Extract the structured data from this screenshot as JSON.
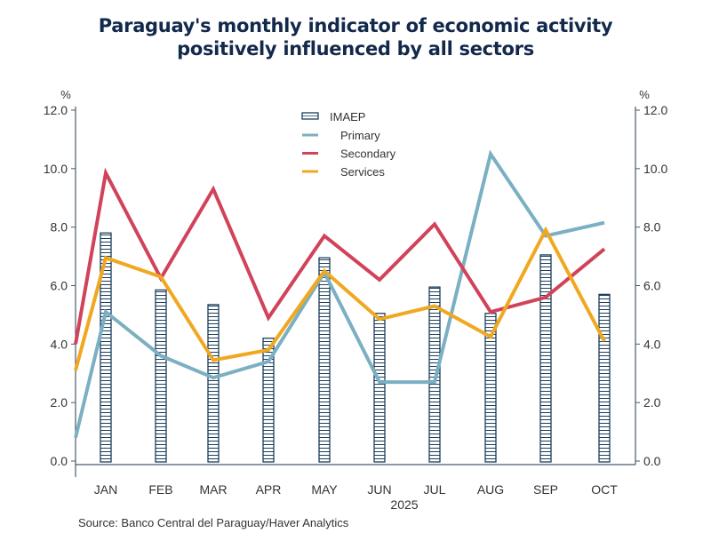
{
  "chart_data": {
    "type": "bar+line",
    "title": "Paraguay's monthly indicator of economic activity positively influenced by all sectors",
    "title_lines": [
      "Paraguay's monthly indicator of economic activity",
      "positively influenced by all sectors"
    ],
    "categories": [
      "JAN",
      "FEB",
      "MAR",
      "APR",
      "MAY",
      "JUN",
      "JUL",
      "AUG",
      "SEP",
      "OCT"
    ],
    "year_label": "2025",
    "y_unit_left": "%",
    "y_unit_right": "%",
    "ylim": [
      0,
      12
    ],
    "yticks": [
      "0.0",
      "2.0",
      "4.0",
      "6.0",
      "8.0",
      "10.0",
      "12.0"
    ],
    "ytick_values": [
      0,
      2,
      4,
      6,
      8,
      10,
      12
    ],
    "grid": false,
    "legend_position": "top-center",
    "bars": {
      "name": "IMAEP",
      "values": [
        7.8,
        5.85,
        5.35,
        4.2,
        6.95,
        5.05,
        5.95,
        5.05,
        7.05,
        5.7
      ],
      "color": "#1b3f5c"
    },
    "series": [
      {
        "name": "Primary",
        "color": "#7bafc2",
        "start_value": 0.8,
        "values": [
          5.1,
          3.6,
          2.85,
          3.4,
          6.45,
          2.7,
          2.7,
          10.5,
          7.7,
          8.15
        ]
      },
      {
        "name": "Secondary",
        "color": "#d1435b",
        "start_value": 4.0,
        "values": [
          9.85,
          6.25,
          9.3,
          4.9,
          7.7,
          6.2,
          8.1,
          5.1,
          5.6,
          7.25
        ]
      },
      {
        "name": "Services",
        "color": "#f0a820",
        "start_value": 3.1,
        "values": [
          6.95,
          6.3,
          3.45,
          3.8,
          6.5,
          4.85,
          5.3,
          4.25,
          7.9,
          4.1
        ]
      }
    ],
    "source": "Source:  Banco Central del Paraguay/Haver Analytics"
  }
}
